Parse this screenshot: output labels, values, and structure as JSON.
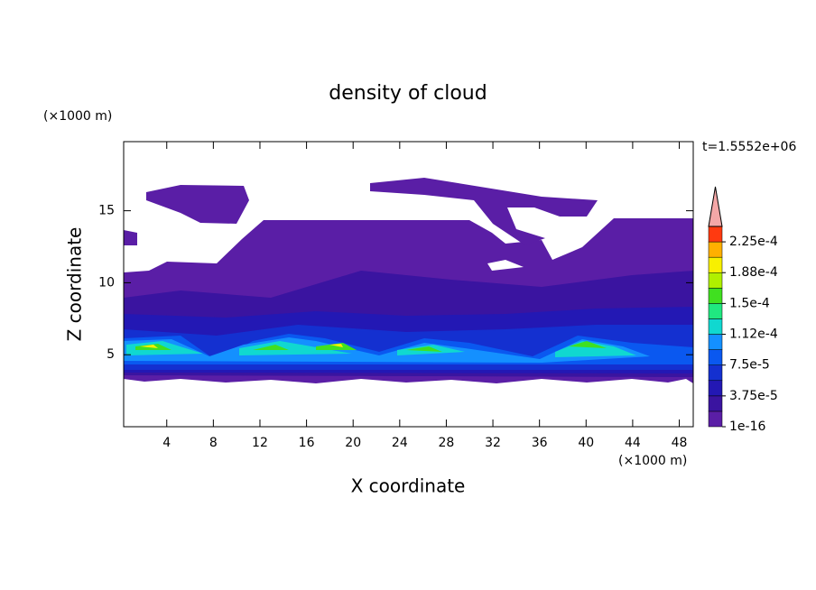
{
  "chart_data": {
    "type": "contour",
    "title": "density of cloud",
    "time_label": "t=1.5552e+06",
    "x_label": "X coordinate",
    "y_label": "Z coordinate",
    "x_unit": "(×1000 m)",
    "y_unit": "(×1000 m)",
    "xlim": [
      0.3,
      49.2
    ],
    "ylim": [
      0,
      19.8
    ],
    "xticks": [
      4,
      8,
      12,
      16,
      20,
      24,
      28,
      32,
      36,
      40,
      44,
      48
    ],
    "yticks": [
      5,
      10,
      15
    ],
    "colorbar": {
      "lim": [
        1e-16,
        0.00024375
      ],
      "ticks": [
        {
          "value": 1e-16,
          "label": "1e-16"
        },
        {
          "value": 3.75e-05,
          "label": "3.75e-5"
        },
        {
          "value": 7.5e-05,
          "label": "7.5e-5"
        },
        {
          "value": 0.0001125,
          "label": "1.12e-4"
        },
        {
          "value": 0.00015,
          "label": "1.5e-4"
        },
        {
          "value": 0.0001875,
          "label": "1.88e-4"
        },
        {
          "value": 0.000225,
          "label": "2.25e-4"
        }
      ],
      "colors": [
        "#5a1ea6",
        "#3a14a0",
        "#2318b4",
        "#1430d0",
        "#0a58f0",
        "#1490ff",
        "#10d8d0",
        "#20e880",
        "#40e020",
        "#b0f000",
        "#f8f000",
        "#ffb000",
        "#ff3a10"
      ],
      "extend_color": "#f4a7a7"
    }
  }
}
